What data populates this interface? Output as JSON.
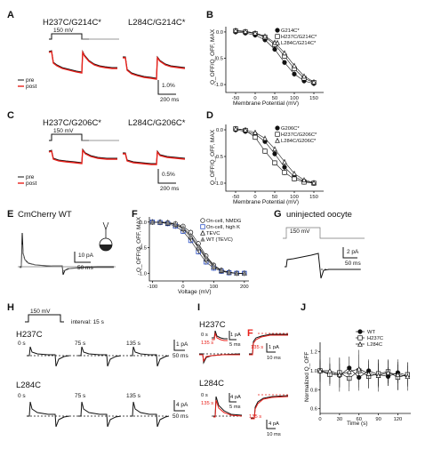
{
  "panels": {
    "A": {
      "letter": "A",
      "left_title": "H237C/G214C*",
      "right_title": "L284C/G214C*",
      "stim": "150 mV",
      "legend": [
        "pre",
        "post"
      ],
      "scale_y": "1.0%",
      "scale_x": "200 ms"
    },
    "B": {
      "letter": "B",
      "legend": [
        "G214C*",
        "H237C/G214C*",
        "L284C/G214C*"
      ],
      "xlabel": "Membrane Potential (mV)",
      "ylabel": "Q_OFF/Q_OFF, MAX",
      "xticks": [
        "-50",
        "0",
        "50",
        "100",
        "150"
      ],
      "yticks": [
        "0.0",
        "-0.5",
        "-1.0"
      ]
    },
    "C": {
      "letter": "C",
      "left_title": "H237C/G206C*",
      "right_title": "L284C/G206C*",
      "stim": "150 mV",
      "legend": [
        "pre",
        "post"
      ],
      "scale_y": "0.5%",
      "scale_x": "200 ms"
    },
    "D": {
      "letter": "D",
      "legend": [
        "G206C*",
        "H237C/G206C*",
        "L284C/G206C*"
      ],
      "xlabel": "Membrane Potential (mV)",
      "ylabel": "Q_OFF/Q_OFF, MAX",
      "xticks": [
        "-50",
        "0",
        "50",
        "100",
        "150"
      ],
      "yticks": [
        "0.0",
        "-0.5",
        "-1.0"
      ]
    },
    "E": {
      "letter": "E",
      "title": "CmCherry WT",
      "scale_y": "10 pA",
      "scale_x": "50 ms"
    },
    "F": {
      "letter": "F",
      "legend": [
        "On-cell, NMDG",
        "On-cell, high K",
        "TEVC",
        "WT (TEVC)"
      ],
      "xlabel": "Voltage (mV)",
      "ylabel": "Q_OFF/Q_OFF, MAX",
      "xticks": [
        "-100",
        "0",
        "100",
        "200"
      ],
      "yticks": [
        "0.0",
        "-0.5",
        "-1.0"
      ]
    },
    "G": {
      "letter": "G",
      "title": "uninjected oocyte",
      "stim": "150 mV",
      "scale_y": "2 pA",
      "scale_x": "50 ms"
    },
    "H": {
      "letter": "H",
      "stim": "150 mV",
      "interval": "interval: 15 s",
      "top_title": "H237C",
      "bottom_title": "L284C",
      "times": [
        "0 s",
        "75 s",
        "135 s"
      ],
      "top_scale_y": "1 pA",
      "top_scale_x": "50 ms",
      "bottom_scale_y": "4 pA",
      "bottom_scale_x": "50 ms"
    },
    "I": {
      "letter": "I",
      "top_title": "H237C",
      "bottom_title": "L284C",
      "t0": "0 s",
      "t1": "135 s",
      "scale_a_y": "1 pA",
      "scale_a_x": "5 ms",
      "scale_b_y": "1 pA",
      "scale_b_x": "10 ms",
      "scale_c_y": "4 pA",
      "scale_c_x": "5 ms",
      "scale_d_y": "4 pA",
      "scale_d_x": "10 ms",
      "marker": "F"
    },
    "J": {
      "letter": "J",
      "legend": [
        "WT",
        "H237C",
        "L284C"
      ],
      "xlabel": "Time (s)",
      "ylabel": "Normalized Q_OFF",
      "xticks": [
        "0",
        "30",
        "60",
        "90",
        "120"
      ],
      "yticks": [
        "0.6",
        "0.8",
        "1.0",
        "1.2"
      ]
    }
  },
  "chart_data": [
    {
      "panel": "B",
      "type": "scatter",
      "x": [
        -50,
        -25,
        0,
        25,
        50,
        75,
        100,
        125,
        150
      ],
      "series": [
        {
          "name": "G214C*",
          "values": [
            0.0,
            -0.02,
            -0.06,
            -0.15,
            -0.33,
            -0.58,
            -0.8,
            -0.93,
            -0.98
          ]
        },
        {
          "name": "H237C/G214C*",
          "values": [
            0.02,
            0.0,
            -0.03,
            -0.1,
            -0.24,
            -0.46,
            -0.7,
            -0.88,
            -0.96
          ]
        },
        {
          "name": "L284C/G214C*",
          "values": [
            0.03,
            0.01,
            -0.02,
            -0.08,
            -0.2,
            -0.4,
            -0.64,
            -0.84,
            -0.95
          ]
        }
      ],
      "xlim": [
        -75,
        175
      ],
      "ylim": [
        -1.15,
        0.1
      ]
    },
    {
      "panel": "D",
      "type": "scatter",
      "x": [
        -50,
        -25,
        0,
        25,
        50,
        75,
        100,
        125,
        150
      ],
      "series": [
        {
          "name": "G206C*",
          "values": [
            0.0,
            -0.03,
            -0.08,
            -0.22,
            -0.45,
            -0.7,
            -0.88,
            -0.96,
            -1.0
          ]
        },
        {
          "name": "H237C/G206C*",
          "values": [
            0.02,
            -0.01,
            -0.14,
            -0.4,
            -0.62,
            -0.8,
            -0.92,
            -0.98,
            -1.0
          ]
        },
        {
          "name": "L284C/G206C*",
          "values": [
            0.02,
            0.0,
            -0.05,
            -0.16,
            -0.36,
            -0.6,
            -0.82,
            -0.94,
            -0.99
          ]
        }
      ],
      "xlim": [
        -75,
        175
      ],
      "ylim": [
        -1.15,
        0.1
      ]
    },
    {
      "panel": "F",
      "type": "scatter",
      "x": [
        -100,
        -75,
        -50,
        -25,
        0,
        25,
        50,
        75,
        100,
        125,
        150,
        175,
        200
      ],
      "series": [
        {
          "name": "On-cell, NMDG",
          "values": [
            0.0,
            0.0,
            -0.01,
            -0.03,
            -0.08,
            -0.2,
            -0.42,
            -0.66,
            -0.84,
            -0.94,
            -0.98,
            -1.0,
            -1.0
          ]
        },
        {
          "name": "On-cell, high K",
          "values": [
            0.0,
            -0.01,
            -0.03,
            -0.08,
            -0.18,
            -0.36,
            -0.58,
            -0.78,
            -0.9,
            -0.96,
            -0.99,
            -1.0,
            -1.0
          ]
        },
        {
          "name": "TEVC",
          "values": [
            0.0,
            0.0,
            -0.02,
            -0.05,
            -0.13,
            -0.29,
            -0.5,
            -0.72,
            -0.87,
            -0.95,
            -0.98,
            -1.0,
            -1.0
          ]
        },
        {
          "name": "WT (TEVC)",
          "values": [
            0.0,
            0.0,
            -0.01,
            -0.04,
            -0.11,
            -0.26,
            -0.47,
            -0.69,
            -0.85,
            -0.94,
            -0.98,
            -1.0,
            -1.0
          ]
        }
      ],
      "xlim": [
        -110,
        215
      ],
      "ylim": [
        -1.15,
        0.1
      ]
    },
    {
      "panel": "J",
      "type": "line",
      "x": [
        0,
        15,
        30,
        45,
        60,
        75,
        90,
        105,
        120,
        135
      ],
      "series": [
        {
          "name": "WT",
          "values": [
            1.0,
            0.97,
            0.95,
            1.03,
            0.93,
            1.0,
            0.96,
            0.94,
            0.98,
            0.95
          ]
        },
        {
          "name": "H237C",
          "values": [
            1.0,
            0.96,
            0.98,
            0.92,
            1.0,
            0.94,
            0.97,
            0.99,
            0.93,
            0.96
          ]
        },
        {
          "name": "L284C",
          "values": [
            1.0,
            1.0,
            0.96,
            0.99,
            1.02,
            0.97,
            0.95,
            0.98,
            0.96,
            0.94
          ]
        }
      ],
      "errors": [
        0.12,
        0.14,
        0.18,
        0.16,
        0.2,
        0.15,
        0.17,
        0.14,
        0.16,
        0.15
      ],
      "xlim": [
        0,
        140
      ],
      "ylim": [
        0.55,
        1.3
      ]
    }
  ]
}
